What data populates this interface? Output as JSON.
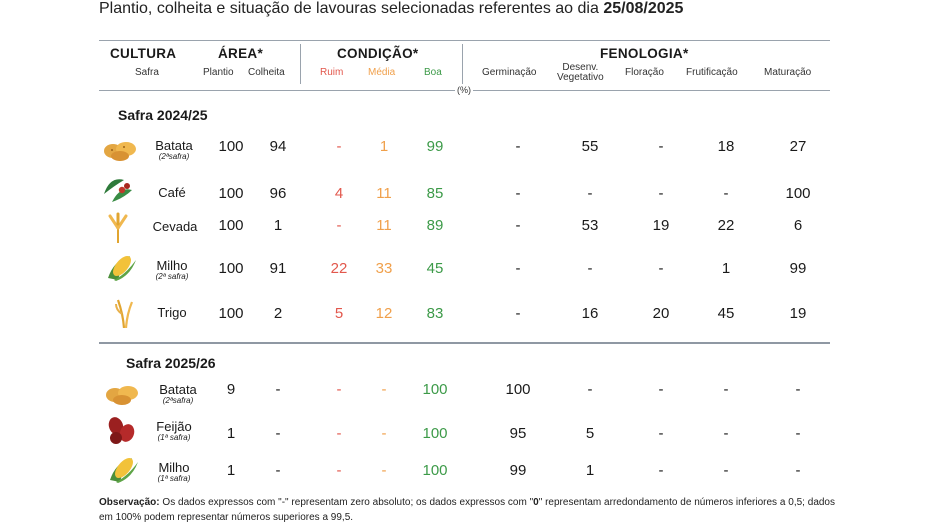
{
  "title": {
    "prefix": "Plantio, colheita e situação de lavouras selecionadas referentes ao dia ",
    "date": "25/08/2025"
  },
  "headers": {
    "cultura": "CULTURA",
    "safra": "Safra",
    "area": "ÁREA*",
    "plantio": "Plantio",
    "colheita": "Colheita",
    "condicao": "CONDIÇÃO*",
    "ruim": "Ruim",
    "media": "Média",
    "boa": "Boa",
    "fenologia": "FENOLOGIA*",
    "germinacao": "Germinação",
    "desenv1": "Desenv.",
    "desenv2": "Vegetativo",
    "floracao": "Floração",
    "frutificacao": "Frutificação",
    "maturacao": "Maturação",
    "pct": "(%)"
  },
  "sections": [
    {
      "label": "Safra 2024/25",
      "rows": [
        {
          "name": "Batata",
          "sub": "(2ªsafra)",
          "icon": "potato-icon",
          "plantio": "100",
          "colheita": "94",
          "ruim": "-",
          "media": "1",
          "boa": "99",
          "germ": "-",
          "desenv": "55",
          "flor": "-",
          "frut": "18",
          "mat": "27"
        },
        {
          "name": "Café",
          "sub": "",
          "icon": "coffee-icon",
          "plantio": "100",
          "colheita": "96",
          "ruim": "4",
          "media": "11",
          "boa": "85",
          "germ": "-",
          "desenv": "-",
          "flor": "-",
          "frut": "-",
          "mat": "100"
        },
        {
          "name": "Cevada",
          "sub": "",
          "icon": "barley-icon",
          "plantio": "100",
          "colheita": "1",
          "ruim": "-",
          "media": "11",
          "boa": "89",
          "germ": "-",
          "desenv": "53",
          "flor": "19",
          "frut": "22",
          "mat": "6"
        },
        {
          "name": "Milho",
          "sub": "(2ª safra)",
          "icon": "corn-icon",
          "plantio": "100",
          "colheita": "91",
          "ruim": "22",
          "media": "33",
          "boa": "45",
          "germ": "-",
          "desenv": "-",
          "flor": "-",
          "frut": "1",
          "mat": "99"
        },
        {
          "name": "Trigo",
          "sub": "",
          "icon": "wheat-icon",
          "plantio": "100",
          "colheita": "2",
          "ruim": "5",
          "media": "12",
          "boa": "83",
          "germ": "-",
          "desenv": "16",
          "flor": "20",
          "frut": "45",
          "mat": "19"
        }
      ]
    },
    {
      "label": "Safra 2025/26",
      "rows": [
        {
          "name": "Batata",
          "sub": "(2ªsafra)",
          "icon": "potato-icon",
          "plantio": "9",
          "colheita": "-",
          "ruim": "-",
          "media": "-",
          "boa": "100",
          "germ": "100",
          "desenv": "-",
          "flor": "-",
          "frut": "-",
          "mat": "-"
        },
        {
          "name": "Feijão",
          "sub": "(1ª safra)",
          "icon": "bean-icon",
          "plantio": "1",
          "colheita": "-",
          "ruim": "-",
          "media": "-",
          "boa": "100",
          "germ": "95",
          "desenv": "5",
          "flor": "-",
          "frut": "-",
          "mat": "-"
        },
        {
          "name": "Milho",
          "sub": "(1ª safra)",
          "icon": "corn-icon",
          "plantio": "1",
          "colheita": "-",
          "ruim": "-",
          "media": "-",
          "boa": "100",
          "germ": "99",
          "desenv": "1",
          "flor": "-",
          "frut": "-",
          "mat": "-"
        }
      ]
    }
  ],
  "note": {
    "label": "Observação:",
    "text1": " Os dados expressos com \"-\" representam zero absoluto; os dados expressos com \"",
    "zero": "0",
    "text2": "\" representam arredondamento de números inferiores a 0,5; dados em 100% podem representar números superiores a 99,5."
  }
}
